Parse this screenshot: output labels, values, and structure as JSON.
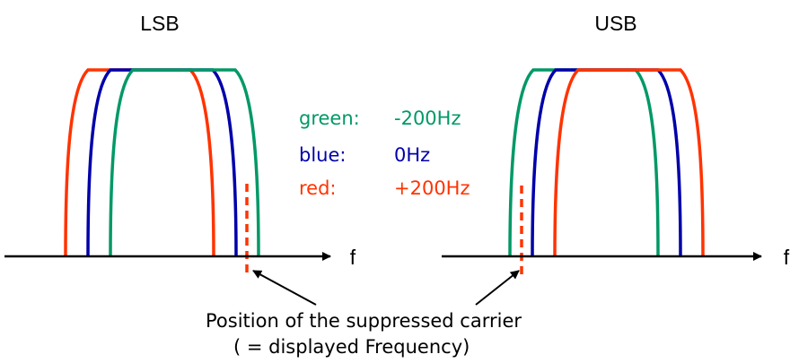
{
  "titles": {
    "lsb": "LSB",
    "usb": "USB"
  },
  "axis_label": "f",
  "legend": [
    {
      "key": "green:",
      "value": "-200Hz",
      "color": "#009966"
    },
    {
      "key": "blue:",
      "value": "0Hz",
      "color": "#0000aa"
    },
    {
      "key": "red:",
      "value": "+200Hz",
      "color": "#ff3300"
    }
  ],
  "caption": {
    "line1": "Position of the suppressed carrier",
    "line2": "( = displayed Frequency)"
  },
  "colors": {
    "green": "#009966",
    "blue": "#0000aa",
    "red": "#ff3300",
    "axis": "#000000"
  }
}
